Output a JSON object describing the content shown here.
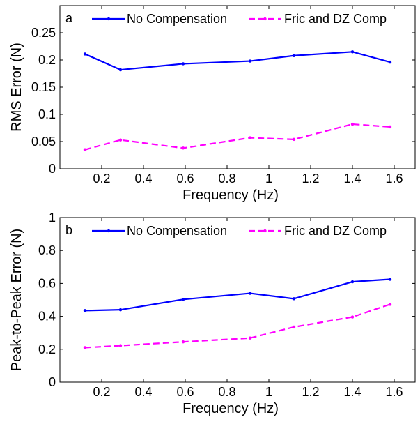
{
  "chart_data": [
    {
      "type": "line",
      "panel_letter": "a",
      "xlabel": "Frequency (Hz)",
      "ylabel": "RMS Error (N)",
      "xlim": [
        0,
        1.7
      ],
      "ylim": [
        0,
        0.3
      ],
      "xticks": [
        0.2,
        0.4,
        0.6,
        0.8,
        1,
        1.2,
        1.4,
        1.6
      ],
      "xtick_labels": [
        "0.2",
        "0.4",
        "0.6",
        "0.8",
        "1",
        "1.2",
        "1.4",
        "1.6"
      ],
      "yticks": [
        0,
        0.05,
        0.1,
        0.15,
        0.2,
        0.25
      ],
      "ytick_labels": [
        "0",
        "0.05",
        "0.1",
        "0.15",
        "0.2",
        "0.25"
      ],
      "grid": false,
      "legend_placement": "top",
      "x": [
        0.12,
        0.29,
        0.59,
        0.91,
        1.12,
        1.4,
        1.58
      ],
      "series": [
        {
          "name": "No Compensation",
          "color": "#0000ff",
          "style": "solid",
          "values": [
            0.211,
            0.182,
            0.193,
            0.198,
            0.208,
            0.215,
            0.196
          ]
        },
        {
          "name": "Fric and DZ Comp",
          "color": "#ff00ff",
          "style": "dashed",
          "values": [
            0.035,
            0.053,
            0.038,
            0.057,
            0.054,
            0.082,
            0.077
          ]
        }
      ]
    },
    {
      "type": "line",
      "panel_letter": "b",
      "xlabel": "Frequency (Hz)",
      "ylabel": "Peak-to-Peak Error (N)",
      "xlim": [
        0,
        1.7
      ],
      "ylim": [
        0,
        1
      ],
      "xticks": [
        0.2,
        0.4,
        0.6,
        0.8,
        1,
        1.2,
        1.4,
        1.6
      ],
      "xtick_labels": [
        "0.2",
        "0.4",
        "0.6",
        "0.8",
        "1",
        "1.2",
        "1.4",
        "1.6"
      ],
      "yticks": [
        0,
        0.2,
        0.4,
        0.6,
        0.8,
        1
      ],
      "ytick_labels": [
        "0",
        "0.2",
        "0.4",
        "0.6",
        "0.8",
        "1"
      ],
      "grid": false,
      "legend_placement": "top",
      "x": [
        0.12,
        0.29,
        0.59,
        0.91,
        1.12,
        1.4,
        1.58
      ],
      "series": [
        {
          "name": "No Compensation",
          "color": "#0000ff",
          "style": "solid",
          "values": [
            0.435,
            0.44,
            0.503,
            0.54,
            0.507,
            0.61,
            0.625
          ]
        },
        {
          "name": "Fric and DZ Comp",
          "color": "#ff00ff",
          "style": "dashed",
          "values": [
            0.21,
            0.222,
            0.245,
            0.268,
            0.335,
            0.396,
            0.473
          ]
        }
      ]
    }
  ]
}
